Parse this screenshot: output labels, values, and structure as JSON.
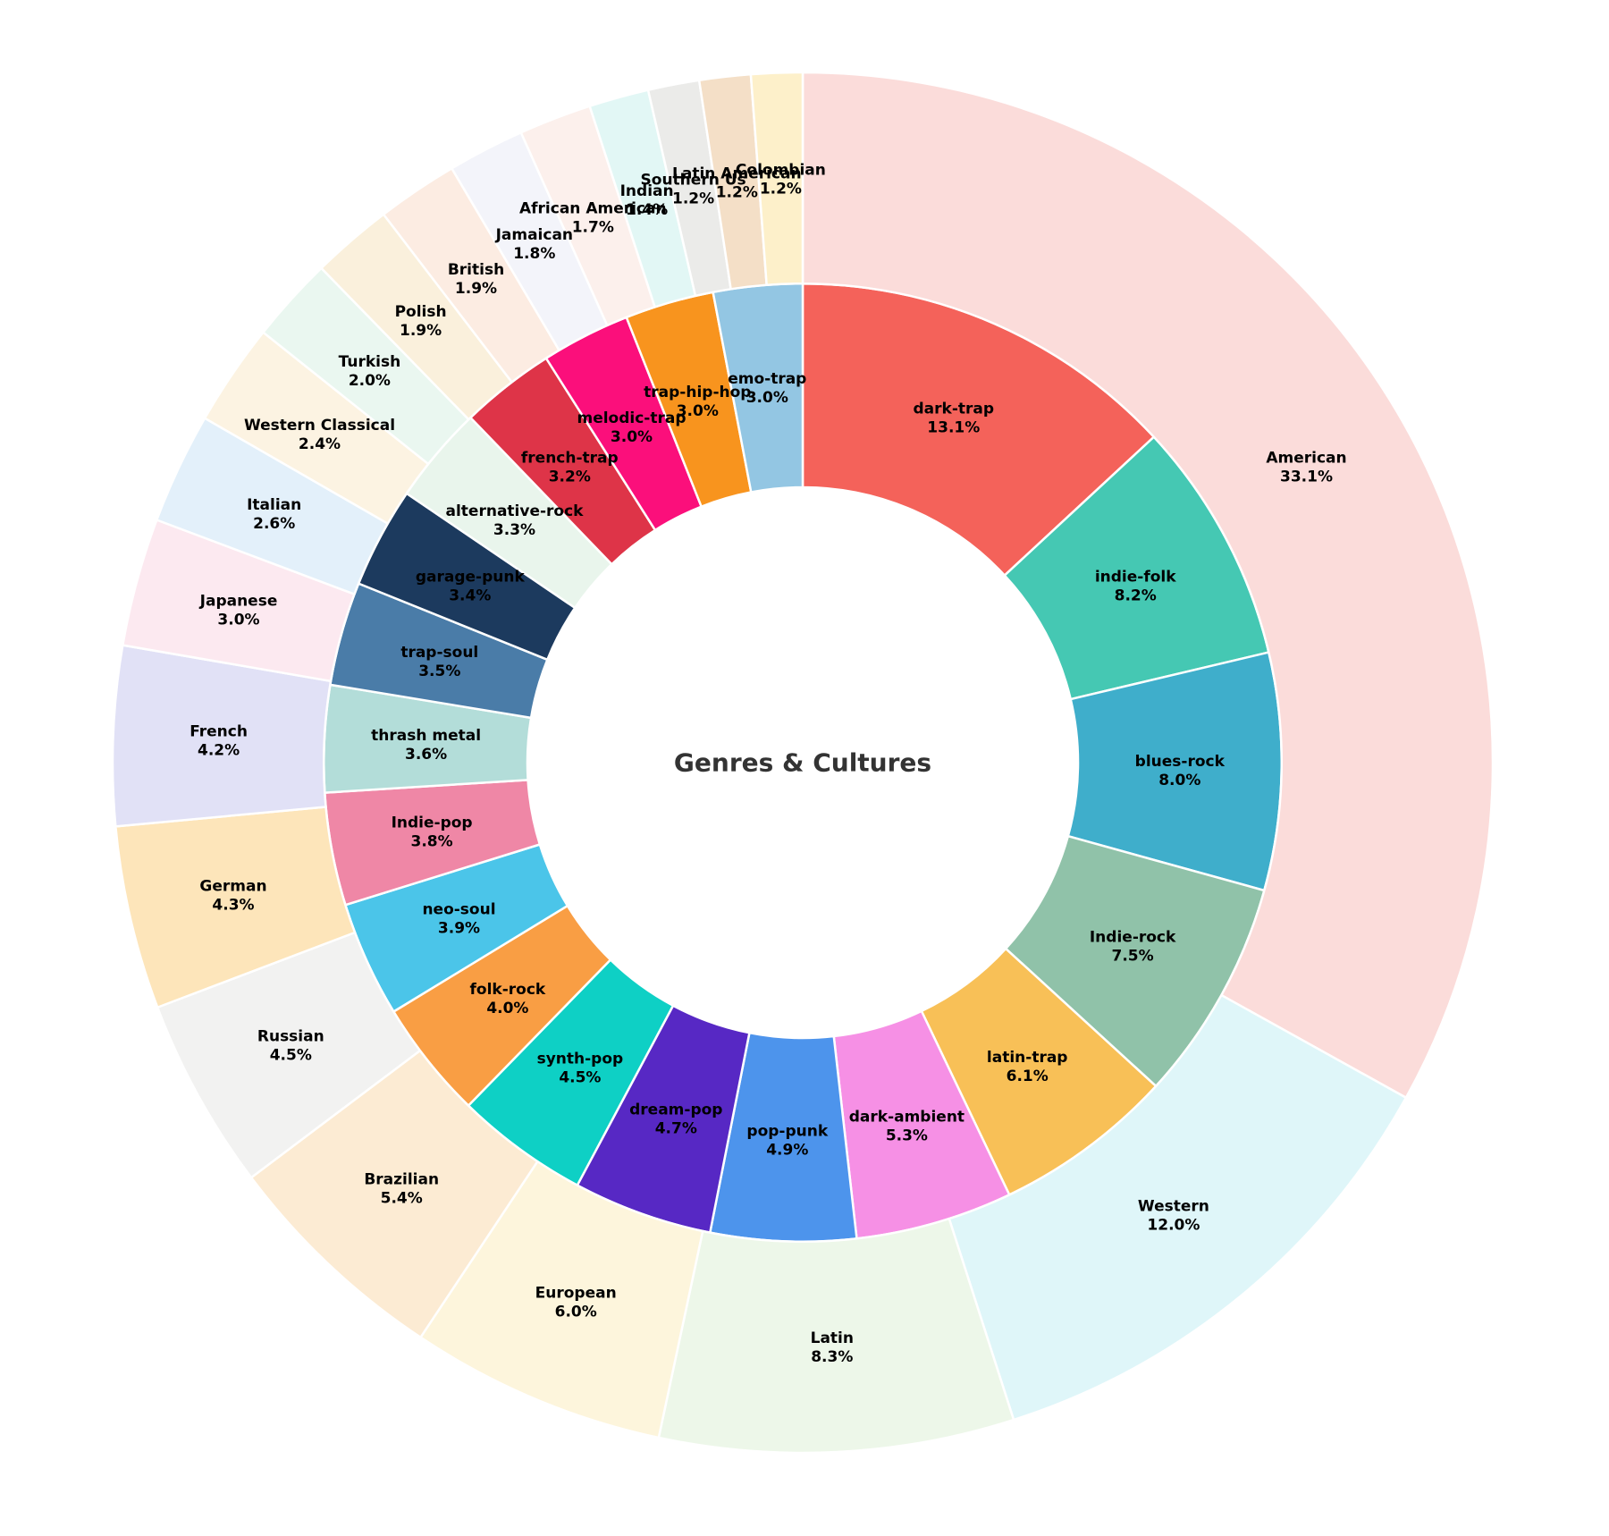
{
  "chart_data": {
    "type": "pie",
    "variant": "sunburst-two-ring-donut",
    "title": "Genres & Cultures",
    "rings": [
      {
        "id": "genres",
        "position": "inner",
        "slices": [
          {
            "label": "dark-trap",
            "value": 13.1,
            "color": "#F4625A"
          },
          {
            "label": "indie-folk",
            "value": 8.2,
            "color": "#45C8B3"
          },
          {
            "label": "blues-rock",
            "value": 8.0,
            "color": "#3FAECB"
          },
          {
            "label": "Indie-rock",
            "value": 7.5,
            "color": "#90C2A9"
          },
          {
            "label": "latin-trap",
            "value": 6.1,
            "color": "#F8C057"
          },
          {
            "label": "dark-ambient",
            "value": 5.3,
            "color": "#F690E5"
          },
          {
            "label": "pop-punk",
            "value": 4.9,
            "color": "#4D94EC"
          },
          {
            "label": "dream-pop",
            "value": 4.7,
            "color": "#5728C4"
          },
          {
            "label": "synth-pop",
            "value": 4.5,
            "color": "#0ED0C5"
          },
          {
            "label": "folk-rock",
            "value": 4.0,
            "color": "#F99E44"
          },
          {
            "label": "neo-soul",
            "value": 3.9,
            "color": "#4BC5E9"
          },
          {
            "label": "Indie-pop",
            "value": 3.8,
            "color": "#EF87A6"
          },
          {
            "label": "thrash metal",
            "value": 3.6,
            "color": "#B3DDD9"
          },
          {
            "label": "trap-soul",
            "value": 3.5,
            "color": "#4A7CA8"
          },
          {
            "label": "garage-punk",
            "value": 3.4,
            "color": "#1C3A5E"
          },
          {
            "label": "alternative-rock",
            "value": 3.3,
            "color": "#E9F5EC"
          },
          {
            "label": "french-trap",
            "value": 3.2,
            "color": "#DE3448"
          },
          {
            "label": "melodic-trap",
            "value": 3.0,
            "color": "#FB0F7B"
          },
          {
            "label": "trap-hip-hop",
            "value": 3.0,
            "color": "#F8941E"
          },
          {
            "label": "emo-trap",
            "value": 3.0,
            "color": "#93C6E3"
          }
        ]
      },
      {
        "id": "cultures",
        "position": "outer",
        "slices": [
          {
            "label": "American",
            "value": 33.1,
            "color": "#FBDCDA"
          },
          {
            "label": "Western",
            "value": 12.0,
            "color": "#DFF6F9"
          },
          {
            "label": "Latin",
            "value": 8.3,
            "color": "#EDF7E9"
          },
          {
            "label": "European",
            "value": 6.0,
            "color": "#FDF5DC"
          },
          {
            "label": "Brazilian",
            "value": 5.4,
            "color": "#FCEBD3"
          },
          {
            "label": "Russian",
            "value": 4.5,
            "color": "#F2F2F1"
          },
          {
            "label": "German",
            "value": 4.3,
            "color": "#FDE5BA"
          },
          {
            "label": "French",
            "value": 4.2,
            "color": "#E1E1F6"
          },
          {
            "label": "Japanese",
            "value": 3.0,
            "color": "#FCE9F0"
          },
          {
            "label": "Italian",
            "value": 2.6,
            "color": "#E3F0FA"
          },
          {
            "label": "Western Classical",
            "value": 2.4,
            "color": "#FCF3E2"
          },
          {
            "label": "Turkish",
            "value": 2.0,
            "color": "#EAF7F0"
          },
          {
            "label": "Polish",
            "value": 1.9,
            "color": "#FAF0DC"
          },
          {
            "label": "British",
            "value": 1.9,
            "color": "#FCECE2"
          },
          {
            "label": "Jamaican",
            "value": 1.8,
            "color": "#F3F4FA"
          },
          {
            "label": "African American",
            "value": 1.7,
            "color": "#FCF0EC"
          },
          {
            "label": "Indian",
            "value": 1.4,
            "color": "#E2F7F5"
          },
          {
            "label": "Southern Us",
            "value": 1.2,
            "color": "#EBEBE9"
          },
          {
            "label": "Latin American",
            "value": 1.2,
            "color": "#F4DFC7"
          },
          {
            "label": "Colombian",
            "value": 1.2,
            "color": "#FDF0CA"
          }
        ]
      }
    ],
    "layout": {
      "start_angle_deg": 90,
      "direction": "clockwise",
      "hole_radius_ratio": 0.399,
      "ring_boundary_ratio": 0.694,
      "label_position": "ring-centroid",
      "label_format": "{label}\n{value}%",
      "wedge_border_color": "#FFFFFF",
      "background": "#FFFFFF",
      "label_color": "#000000",
      "title_color": "#333333",
      "legend": "none",
      "grid": false
    }
  }
}
